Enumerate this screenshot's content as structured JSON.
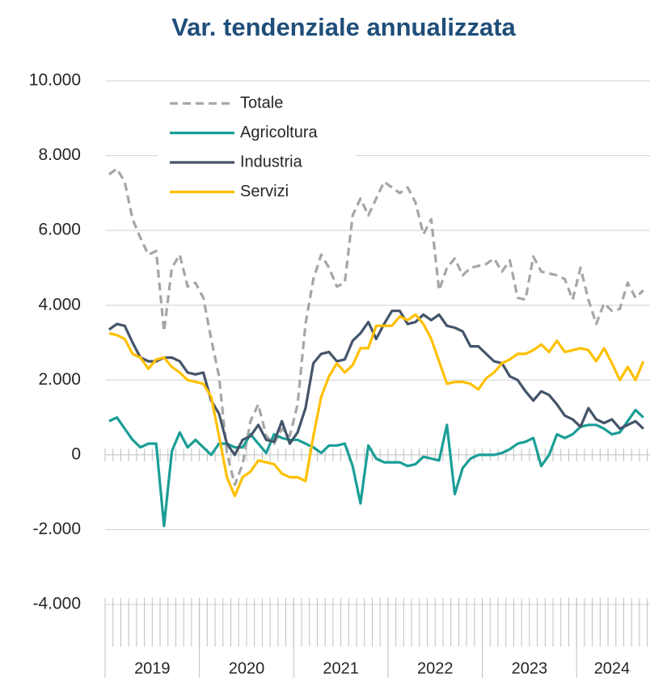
{
  "chart_data": {
    "type": "line",
    "title": "Var. tendenziale annualizzata",
    "categories": [
      "2019",
      null,
      null,
      null,
      null,
      null,
      null,
      null,
      null,
      null,
      null,
      null,
      "2020",
      null,
      null,
      null,
      null,
      null,
      null,
      null,
      null,
      null,
      null,
      null,
      "2021",
      null,
      null,
      null,
      null,
      null,
      null,
      null,
      null,
      null,
      null,
      null,
      "2022",
      null,
      null,
      null,
      null,
      null,
      null,
      null,
      null,
      null,
      null,
      null,
      "2023",
      null,
      null,
      null,
      null,
      null,
      null,
      null,
      null,
      null,
      null,
      null,
      "2024",
      null,
      null,
      null,
      null,
      null,
      null,
      null,
      null
    ],
    "series": [
      {
        "name": "Totale",
        "color": "#a6a6a6",
        "dashed": true,
        "values": [
          7500,
          7650,
          7300,
          6300,
          5800,
          5350,
          5450,
          3300,
          5000,
          5350,
          4500,
          4600,
          4200,
          3100,
          2100,
          50,
          -800,
          -250,
          900,
          1350,
          500,
          300,
          700,
          500,
          1350,
          3500,
          4700,
          5350,
          5000,
          4500,
          4600,
          6400,
          6850,
          6400,
          6850,
          7300,
          7150,
          7000,
          7150,
          6750,
          5900,
          6300,
          4400,
          5000,
          5250,
          4800,
          5000,
          5050,
          5100,
          5250,
          4900,
          5200,
          4200,
          4150,
          5300,
          4900,
          4850,
          4800,
          4700,
          4150,
          5000,
          4150,
          3500,
          4050,
          3850,
          3900,
          4600,
          4200,
          4400
        ]
      },
      {
        "name": "Agricoltura",
        "color": "#1a9e96",
        "values": [
          900,
          1000,
          700,
          400,
          200,
          300,
          300,
          -1900,
          100,
          600,
          200,
          400,
          200,
          0,
          300,
          300,
          200,
          200,
          550,
          300,
          50,
          550,
          450,
          400,
          400,
          300,
          200,
          50,
          250,
          250,
          300,
          -300,
          -1300,
          250,
          -100,
          -200,
          -200,
          -200,
          -300,
          -250,
          -50,
          -100,
          -150,
          800,
          -1050,
          -350,
          -100,
          0,
          0,
          0,
          50,
          150,
          300,
          350,
          450,
          -300,
          0,
          550,
          450,
          550,
          750,
          800,
          800,
          700,
          550,
          600,
          900,
          1200,
          1000
        ]
      },
      {
        "name": "Industria",
        "color": "#44546a",
        "values": [
          3350,
          3500,
          3450,
          3000,
          2600,
          2500,
          2500,
          2600,
          2600,
          2500,
          2200,
          2150,
          2200,
          1450,
          1100,
          300,
          0,
          400,
          500,
          800,
          400,
          350,
          900,
          300,
          600,
          1250,
          2450,
          2700,
          2750,
          2500,
          2550,
          3050,
          3250,
          3550,
          3100,
          3500,
          3850,
          3850,
          3500,
          3550,
          3750,
          3600,
          3750,
          3450,
          3400,
          3300,
          2900,
          2900,
          2700,
          2500,
          2450,
          2100,
          2000,
          1700,
          1450,
          1700,
          1600,
          1350,
          1050,
          950,
          750,
          1250,
          950,
          850,
          950,
          700,
          800,
          900,
          700
        ]
      },
      {
        "name": "Servizi",
        "color": "#ffc000",
        "values": [
          3250,
          3200,
          3100,
          2700,
          2600,
          2300,
          2550,
          2600,
          2350,
          2200,
          2000,
          1950,
          1900,
          1550,
          500,
          -600,
          -1100,
          -600,
          -450,
          -150,
          -200,
          -250,
          -500,
          -600,
          -600,
          -700,
          500,
          1550,
          2100,
          2450,
          2200,
          2400,
          2850,
          2850,
          3450,
          3450,
          3450,
          3700,
          3600,
          3750,
          3500,
          3100,
          2500,
          1900,
          1950,
          1950,
          1900,
          1750,
          2050,
          2200,
          2450,
          2550,
          2700,
          2700,
          2800,
          2950,
          2750,
          3050,
          2750,
          2800,
          2850,
          2800,
          2500,
          2850,
          2450,
          2000,
          2350,
          2000,
          2500
        ]
      }
    ],
    "ylim": [
      -4000,
      10000
    ],
    "yticks": [
      {
        "value": -4000,
        "label": "-4.000"
      },
      {
        "value": -2000,
        "label": "-2.000"
      },
      0,
      {
        "value": 2000,
        "label": "2.000"
      },
      {
        "value": 4000,
        "label": "4.000"
      },
      {
        "value": 6000,
        "label": "6.000"
      },
      {
        "value": 8000,
        "label": "8.000"
      },
      {
        "value": 10000,
        "label": "10.000"
      }
    ],
    "grid": true
  }
}
